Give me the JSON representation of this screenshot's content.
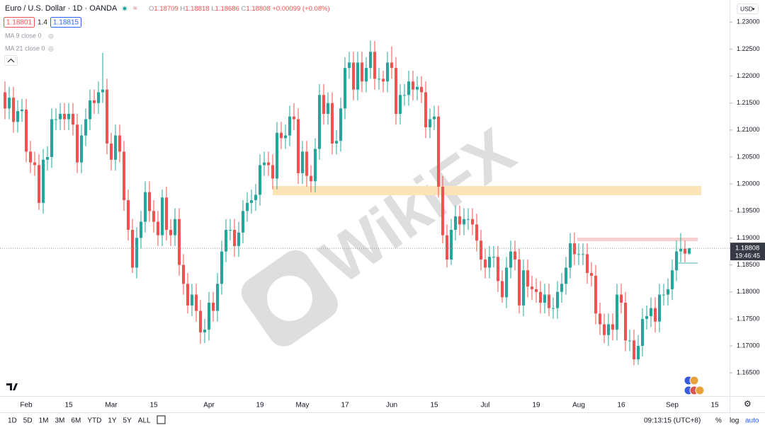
{
  "chart_data": {
    "type": "candlestick",
    "up_color": "#26a69a",
    "down_color": "#ef5350",
    "grid": false,
    "ylim": [
      1.1607,
      1.2341
    ],
    "yticks": [
      {
        "value": 1.23,
        "label": "1.23000"
      },
      {
        "value": 1.225,
        "label": "1.22500"
      },
      {
        "value": 1.22,
        "label": "1.22000"
      },
      {
        "value": 1.215,
        "label": "1.21500"
      },
      {
        "value": 1.21,
        "label": "1.21000"
      },
      {
        "value": 1.205,
        "label": "1.20500"
      },
      {
        "value": 1.2,
        "label": "1.20000"
      },
      {
        "value": 1.195,
        "label": "1.19500"
      },
      {
        "value": 1.19,
        "label": "1.19000"
      },
      {
        "value": 1.185,
        "label": "1.18500"
      },
      {
        "value": 1.18,
        "label": "1.18000"
      },
      {
        "value": 1.175,
        "label": "1.17500"
      },
      {
        "value": 1.17,
        "label": "1.17000"
      },
      {
        "value": 1.165,
        "label": "1.16500"
      }
    ],
    "categories": [
      null,
      null,
      null,
      null,
      null,
      "Feb",
      null,
      null,
      null,
      null,
      null,
      null,
      null,
      null,
      null,
      "15",
      null,
      null,
      null,
      null,
      null,
      null,
      null,
      null,
      null,
      "Mar",
      null,
      null,
      null,
      null,
      null,
      null,
      null,
      null,
      null,
      "15",
      null,
      null,
      null,
      null,
      null,
      null,
      null,
      null,
      null,
      null,
      null,
      null,
      "Apr",
      null,
      null,
      null,
      null,
      null,
      null,
      null,
      null,
      null,
      null,
      null,
      "19",
      null,
      null,
      null,
      null,
      null,
      null,
      null,
      null,
      null,
      "May",
      null,
      null,
      null,
      null,
      null,
      null,
      null,
      null,
      null,
      "17",
      null,
      null,
      null,
      null,
      null,
      null,
      null,
      null,
      null,
      null,
      "Jun",
      null,
      null,
      null,
      null,
      null,
      null,
      null,
      null,
      null,
      "15",
      null,
      null,
      null,
      null,
      null,
      null,
      null,
      null,
      null,
      null,
      null,
      "Jul",
      null,
      null,
      null,
      null,
      null,
      null,
      null,
      null,
      null,
      null,
      null,
      "19",
      null,
      null,
      null,
      null,
      null,
      null,
      null,
      null,
      null,
      "Aug",
      null,
      null,
      null,
      null,
      null,
      null,
      null,
      null,
      null,
      "16",
      null,
      null,
      null,
      null,
      null,
      null,
      null,
      null,
      null,
      null,
      null,
      "Sep",
      null,
      null,
      null,
      null,
      null,
      null,
      null,
      null,
      null,
      "15"
    ],
    "open": [
      1.217,
      1.214,
      1.216,
      1.2115,
      1.2135,
      1.2138,
      1.206,
      1.204,
      1.2035,
      1.1965,
      1.2045,
      1.205,
      1.212,
      1.212,
      1.213,
      1.212,
      1.213,
      1.211,
      1.204,
      1.209,
      1.212,
      1.2155,
      1.215,
      1.217,
      1.2175,
      1.2075,
      1.2045,
      1.209,
      1.206,
      1.197,
      1.1915,
      1.1845,
      1.19,
      1.193,
      1.1985,
      1.195,
      1.193,
      1.1905,
      1.1975,
      1.1915,
      1.1905,
      1.1935,
      1.185,
      1.1815,
      1.1775,
      1.1795,
      1.1765,
      1.1725,
      1.173,
      1.178,
      1.1765,
      1.1815,
      1.1875,
      1.1915,
      1.1915,
      1.1885,
      1.191,
      1.195,
      1.1965,
      1.197,
      1.198,
      1.2035,
      1.204,
      1.2035,
      1.201,
      1.2095,
      1.2085,
      1.209,
      1.2125,
      1.212,
      1.202,
      1.206,
      1.2015,
      1.2005,
      1.2065,
      1.2165,
      1.213,
      1.215,
      1.2075,
      1.208,
      1.214,
      1.2215,
      1.2225,
      1.2175,
      1.2225,
      1.219,
      1.2215,
      1.2245,
      1.2195,
      1.2195,
      1.219,
      1.2225,
      1.2215,
      1.213,
      1.2165,
      1.2165,
      1.219,
      1.2175,
      1.218,
      1.217,
      1.2105,
      1.212,
      1.2125,
      1.1995,
      1.1905,
      1.186,
      1.1915,
      1.194,
      1.1925,
      1.1935,
      1.1935,
      1.1925,
      1.1895,
      1.186,
      1.1845,
      1.1865,
      1.1865,
      1.182,
      1.179,
      1.1845,
      1.1875,
      1.186,
      1.1775,
      1.184,
      1.181,
      1.1805,
      1.18,
      1.178,
      1.1795,
      1.177,
      1.177,
      1.18,
      1.1815,
      1.1845,
      1.189,
      1.187,
      1.187,
      1.187,
      1.1835,
      1.183,
      1.176,
      1.174,
      1.172,
      1.174,
      1.173,
      1.1795,
      1.178,
      1.171,
      1.171,
      1.1675,
      1.17,
      1.175,
      1.1755,
      1.177,
      1.1745,
      1.1795,
      1.1795,
      1.1805,
      1.184,
      1.1875,
      1.188,
      1.18709,
      null,
      null,
      null,
      null,
      null,
      null
    ],
    "high": [
      1.219,
      1.218,
      1.218,
      1.2155,
      1.2158,
      1.2158,
      1.208,
      1.206,
      1.2055,
      1.2065,
      1.207,
      1.214,
      1.214,
      1.215,
      1.215,
      1.215,
      1.215,
      1.213,
      1.211,
      1.214,
      1.2175,
      1.2175,
      1.219,
      1.2243,
      1.2195,
      1.2095,
      1.211,
      1.211,
      1.208,
      1.199,
      1.1935,
      1.192,
      1.195,
      1.2005,
      1.2005,
      1.197,
      1.195,
      1.199,
      1.1995,
      1.1935,
      1.1955,
      1.1955,
      1.187,
      1.1835,
      1.1815,
      1.1815,
      1.1785,
      1.175,
      1.18,
      1.18,
      1.1835,
      1.1895,
      1.1935,
      1.1935,
      1.1935,
      1.193,
      1.197,
      1.1985,
      1.199,
      1.2,
      1.2055,
      1.206,
      1.206,
      1.2055,
      1.2115,
      1.2115,
      1.211,
      1.2145,
      1.215,
      1.214,
      1.208,
      1.208,
      1.2035,
      1.2085,
      1.2185,
      1.2185,
      1.217,
      1.217,
      1.21,
      1.216,
      1.2235,
      1.2245,
      1.2245,
      1.2245,
      1.2245,
      1.2235,
      1.2266,
      1.2265,
      1.2215,
      1.221,
      1.2245,
      1.2255,
      1.2235,
      1.2185,
      1.2185,
      1.221,
      1.221,
      1.22,
      1.22,
      1.219,
      1.214,
      1.2145,
      1.2145,
      1.2015,
      1.1925,
      1.1935,
      1.196,
      1.196,
      1.1955,
      1.1955,
      1.1955,
      1.1945,
      1.1915,
      1.188,
      1.1885,
      1.1885,
      1.1885,
      1.184,
      1.1865,
      1.1895,
      1.1895,
      1.188,
      1.186,
      1.186,
      1.183,
      1.1825,
      1.182,
      1.1815,
      1.1815,
      1.179,
      1.182,
      1.1835,
      1.1865,
      1.1909,
      1.191,
      1.189,
      1.189,
      1.189,
      1.1855,
      1.185,
      1.178,
      1.176,
      1.176,
      1.176,
      1.1815,
      1.1815,
      1.18,
      1.173,
      1.173,
      1.172,
      1.177,
      1.1775,
      1.179,
      1.179,
      1.1815,
      1.1815,
      1.1825,
      1.186,
      1.1895,
      1.1909,
      1.1895,
      1.18818,
      null,
      null,
      null,
      null,
      null,
      null
    ],
    "low": [
      1.212,
      1.212,
      1.2095,
      1.2095,
      1.2115,
      1.204,
      1.202,
      1.2015,
      1.1952,
      1.1945,
      1.2025,
      1.203,
      1.21,
      1.21,
      1.21,
      1.21,
      1.209,
      1.202,
      1.202,
      1.207,
      1.21,
      1.213,
      1.213,
      1.215,
      1.2055,
      1.2025,
      1.2025,
      1.204,
      1.195,
      1.1895,
      1.1835,
      1.1825,
      1.188,
      1.191,
      1.193,
      1.191,
      1.1885,
      1.1885,
      1.1895,
      1.1885,
      1.1885,
      1.183,
      1.1795,
      1.176,
      1.1755,
      1.1745,
      1.1704,
      1.1705,
      1.171,
      1.1745,
      1.1745,
      1.1795,
      1.1855,
      1.1895,
      1.1865,
      1.1865,
      1.189,
      1.193,
      1.1945,
      1.195,
      1.196,
      1.2015,
      1.2015,
      1.199,
      1.199,
      1.2065,
      1.2065,
      1.207,
      1.21,
      1.2,
      1.2,
      1.1995,
      1.1985,
      1.1985,
      1.2045,
      1.211,
      1.211,
      1.2055,
      1.2055,
      1.206,
      1.212,
      1.2195,
      1.2155,
      1.2155,
      1.217,
      1.217,
      1.2195,
      1.2175,
      1.2175,
      1.217,
      1.217,
      1.2195,
      1.211,
      1.211,
      1.2145,
      1.2145,
      1.2155,
      1.2155,
      1.215,
      1.2085,
      1.2085,
      1.21,
      1.1975,
      1.189,
      1.1845,
      1.185,
      1.1895,
      1.1905,
      1.1905,
      1.1915,
      1.1905,
      1.1875,
      1.184,
      1.1825,
      1.1825,
      1.1845,
      1.18,
      1.178,
      1.177,
      1.1825,
      1.184,
      1.176,
      1.1755,
      1.179,
      1.1785,
      1.178,
      1.176,
      1.176,
      1.1755,
      1.175,
      1.175,
      1.178,
      1.1795,
      1.1825,
      1.185,
      1.185,
      1.185,
      1.1815,
      1.181,
      1.174,
      1.172,
      1.1705,
      1.17,
      1.171,
      1.171,
      1.176,
      1.169,
      1.169,
      1.1664,
      1.1665,
      1.168,
      1.173,
      1.1735,
      1.1725,
      1.1725,
      1.1775,
      1.1775,
      1.1785,
      1.182,
      1.1855,
      1.1855,
      1.18686,
      null,
      null,
      null,
      null,
      null,
      null
    ],
    "close": [
      1.214,
      1.216,
      1.2115,
      1.2135,
      1.2138,
      1.206,
      1.204,
      1.2035,
      1.1965,
      1.2045,
      1.205,
      1.212,
      1.212,
      1.213,
      1.212,
      1.213,
      1.211,
      1.204,
      1.209,
      1.212,
      1.2155,
      1.215,
      1.217,
      1.2175,
      1.2075,
      1.2045,
      1.209,
      1.206,
      1.197,
      1.1915,
      1.1845,
      1.19,
      1.193,
      1.1985,
      1.195,
      1.193,
      1.1905,
      1.1975,
      1.1915,
      1.1905,
      1.1935,
      1.185,
      1.1815,
      1.1775,
      1.1795,
      1.1765,
      1.1725,
      1.173,
      1.178,
      1.1765,
      1.1815,
      1.1875,
      1.1915,
      1.1915,
      1.1885,
      1.191,
      1.195,
      1.1965,
      1.197,
      1.198,
      1.2035,
      1.204,
      1.2035,
      1.201,
      1.2095,
      1.2085,
      1.209,
      1.2125,
      1.212,
      1.202,
      1.206,
      1.2015,
      1.2005,
      1.2065,
      1.2165,
      1.213,
      1.215,
      1.2075,
      1.208,
      1.214,
      1.2215,
      1.2225,
      1.2175,
      1.2225,
      1.219,
      1.2215,
      1.2245,
      1.2195,
      1.2195,
      1.219,
      1.2225,
      1.2215,
      1.213,
      1.2165,
      1.2165,
      1.219,
      1.2175,
      1.218,
      1.217,
      1.2105,
      1.212,
      1.2125,
      1.1995,
      1.1905,
      1.186,
      1.1915,
      1.194,
      1.1925,
      1.1935,
      1.1935,
      1.1925,
      1.1895,
      1.186,
      1.1845,
      1.1865,
      1.1865,
      1.182,
      1.179,
      1.1845,
      1.1875,
      1.186,
      1.1775,
      1.184,
      1.181,
      1.1805,
      1.18,
      1.178,
      1.1795,
      1.177,
      1.177,
      1.18,
      1.1815,
      1.1845,
      1.189,
      1.187,
      1.187,
      1.187,
      1.1835,
      1.183,
      1.176,
      1.174,
      1.172,
      1.174,
      1.173,
      1.1795,
      1.178,
      1.171,
      1.171,
      1.1675,
      1.17,
      1.175,
      1.1755,
      1.177,
      1.1745,
      1.1795,
      1.1795,
      1.1805,
      1.184,
      1.1875,
      1.188,
      1.18709,
      1.18808,
      null,
      null,
      null,
      null,
      null,
      null
    ]
  },
  "header": {
    "symbol": "Euro / U.S. Dollar · 1D · OANDA",
    "ohlc": [
      {
        "label": "O",
        "value": "1.18709"
      },
      {
        "label": "H",
        "value": "1.18818"
      },
      {
        "label": "L",
        "value": "1.18686"
      },
      {
        "label": "C",
        "value": "1.18808"
      }
    ],
    "change": "+0.00099 (+0.08%)",
    "bid": "1.18801",
    "spread": "1.4",
    "ask": "1.18815",
    "indicators": [
      "MA 9 close 0",
      "MA 21 close 0"
    ]
  },
  "currency": "USD",
  "price_tag": {
    "price": "1.18808",
    "countdown": "19:46:45"
  },
  "watermark": "WikiFX",
  "toolbar": {
    "ranges": [
      "1D",
      "5D",
      "1M",
      "3M",
      "6M",
      "YTD",
      "1Y",
      "5Y",
      "ALL"
    ],
    "clock": "09:13:15 (UTC+8)",
    "percent": "%",
    "log": "log",
    "auto": "auto"
  }
}
